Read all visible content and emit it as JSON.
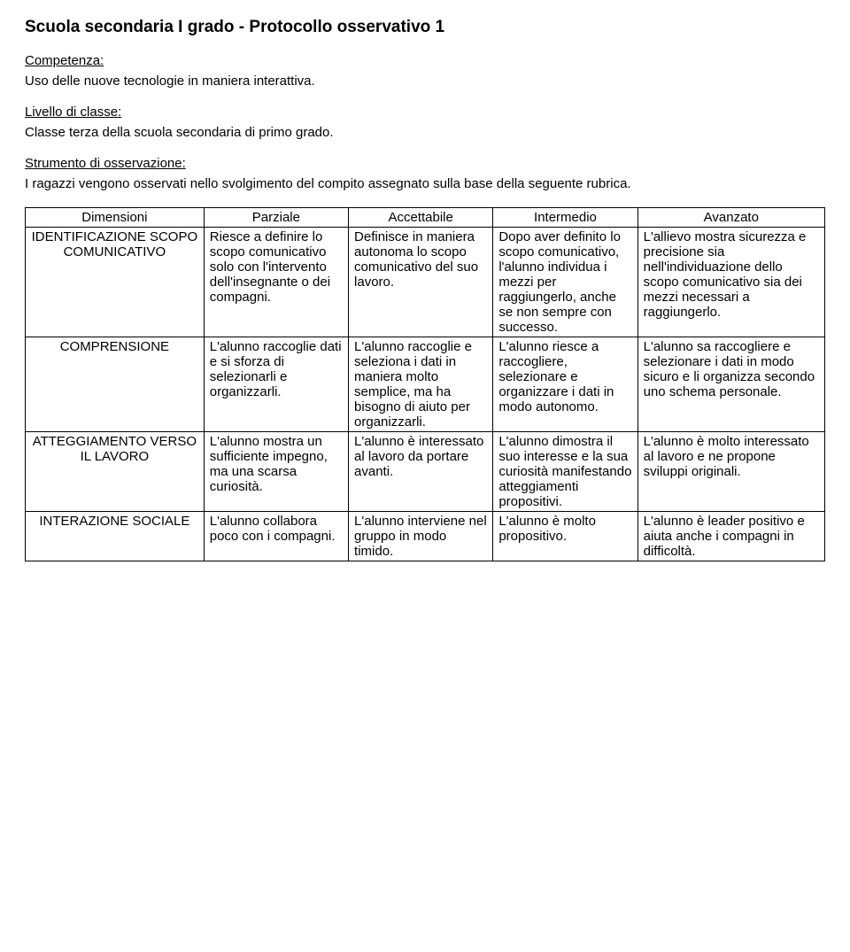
{
  "title": "Scuola secondaria I grado - Protocollo osservativo 1",
  "sections": {
    "competenza": {
      "label": "Competenza:",
      "text": "Uso delle nuove tecnologie in maniera interattiva."
    },
    "livello": {
      "label": "Livello di classe:",
      "text": "Classe terza della scuola secondaria di primo grado."
    },
    "strumento": {
      "label": "Strumento di osservazione:",
      "text": "I ragazzi vengono osservati nello svolgimento del compito assegnato sulla base della seguente rubrica."
    }
  },
  "table": {
    "headers": [
      "Dimensioni",
      "Parziale",
      "Accettabile",
      "Intermedio",
      "Avanzato"
    ],
    "rows": [
      {
        "dim": "IDENTIFICAZIONE SCOPO COMUNICATIVO",
        "parziale": "Riesce a definire lo scopo comunicativo solo con l'intervento dell'insegnante o dei compagni.",
        "accettabile": "Definisce in maniera autonoma lo scopo comunicativo del suo lavoro.",
        "intermedio": "Dopo aver definito lo scopo comunicativo, l'alunno individua i mezzi per raggiungerlo, anche se non sempre con successo.",
        "avanzato": "L'allievo mostra sicurezza e precisione sia nell'individuazione dello scopo comunicativo sia dei mezzi necessari a raggiungerlo."
      },
      {
        "dim": "COMPRENSIONE",
        "parziale": "L'alunno raccoglie dati e si sforza di selezionarli e organizzarli.",
        "accettabile": "L'alunno raccoglie e seleziona i dati in maniera molto semplice, ma ha bisogno di aiuto per organizzarli.",
        "intermedio": "L'alunno riesce a raccogliere, selezionare e organizzare i dati in modo autonomo.",
        "avanzato": "L'alunno sa raccogliere e selezionare i dati in modo sicuro e li organizza secondo uno schema personale."
      },
      {
        "dim": "ATTEGGIAMENTO VERSO IL LAVORO",
        "parziale": "L'alunno mostra un sufficiente impegno, ma una scarsa curiosità.",
        "accettabile": "L'alunno è interessato al lavoro da portare avanti.",
        "intermedio": "L'alunno dimostra il suo interesse e la sua curiosità manifestando atteggiamenti propositivi.",
        "avanzato": "L'alunno è molto interessato al lavoro e ne propone sviluppi originali."
      },
      {
        "dim": "INTERAZIONE SOCIALE",
        "parziale": "L'alunno collabora poco con i compagni.",
        "accettabile": "L'alunno interviene nel gruppo in modo timido.",
        "intermedio": "L'alunno è molto propositivo.",
        "avanzato": "L'alunno è leader positivo e aiuta anche i compagni in difficoltà."
      }
    ]
  }
}
